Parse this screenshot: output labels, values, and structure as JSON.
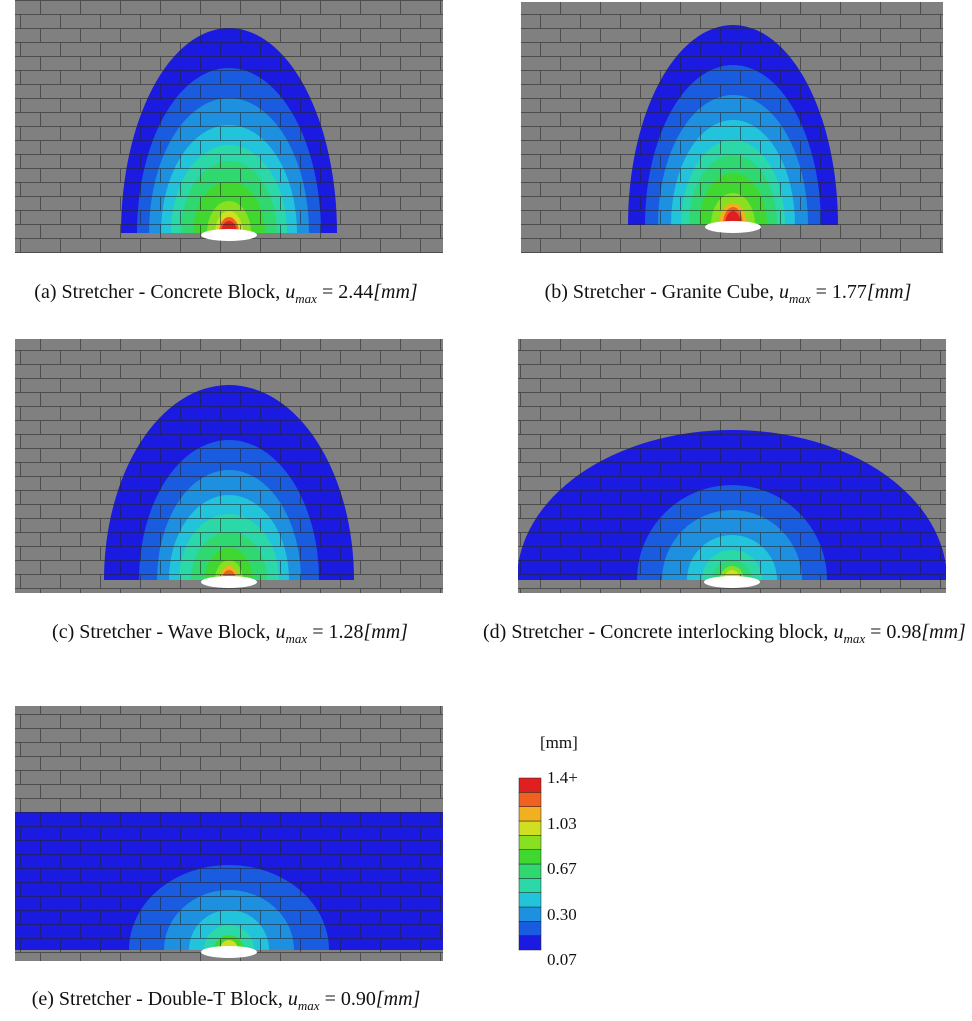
{
  "panels": [
    {
      "label": "(a) Stretcher - Concrete Block,",
      "symbol": "u",
      "subscript": "max",
      "relation": "=",
      "u_max": "2.44",
      "unit": "[mm]"
    },
    {
      "label": "(b) Stretcher - Granite Cube,",
      "symbol": "u",
      "subscript": "max",
      "relation": "=",
      "u_max": "1.77",
      "unit": "[mm]"
    },
    {
      "label": "(c) Stretcher - Wave Block,",
      "symbol": "u",
      "subscript": "max",
      "relation": "=",
      "u_max": "1.28",
      "unit": "[mm]"
    },
    {
      "label": "(d) Stretcher - Concrete interlocking block,",
      "symbol": "u",
      "subscript": "max",
      "relation": "=",
      "u_max": "0.98",
      "unit": "[mm]"
    },
    {
      "label": "(e) Stretcher - Double-T Block,",
      "symbol": "u",
      "subscript": "max",
      "relation": "=",
      "u_max": "0.90",
      "unit": "[mm]"
    }
  ],
  "colorbar": {
    "title": "[mm]",
    "labels": [
      "1.4+",
      "1.03",
      "0.67",
      "0.30",
      "0.07"
    ],
    "colors_bottom_to_top": [
      "#1a1ae0",
      "#1a5ce0",
      "#1e90e0",
      "#22c4dc",
      "#2ad8a8",
      "#30d870",
      "#40d830",
      "#88e020",
      "#d0e020",
      "#f0b020",
      "#f06020",
      "#e02020"
    ]
  }
}
